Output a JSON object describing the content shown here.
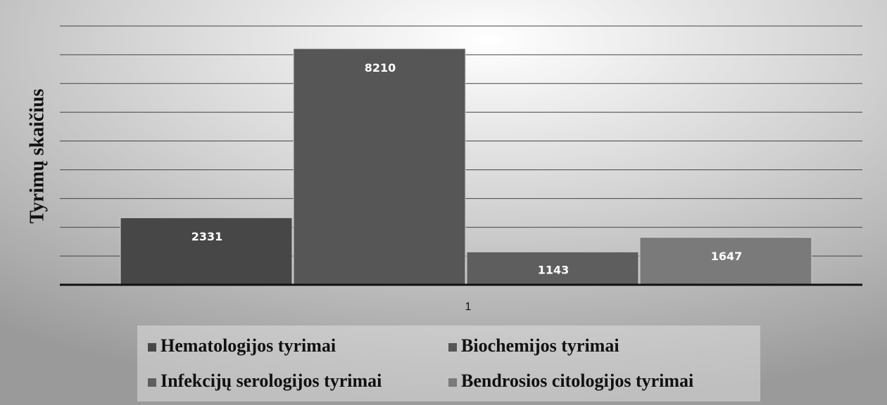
{
  "chart_data": {
    "type": "bar",
    "y_label": "Tyrimų skaičius",
    "categories": [
      "1"
    ],
    "series": [
      {
        "name": "Hematologijos tyrimai",
        "color": "#474747",
        "values": [
          2331
        ]
      },
      {
        "name": "Biochemijos tyrimai",
        "color": "#565656",
        "values": [
          8210
        ]
      },
      {
        "name": "Infekcijų serologijos tyrimai",
        "color": "#5e5e5e",
        "values": [
          1143
        ]
      },
      {
        "name": "Bendrosios citologijos tyrimai",
        "color": "#7a7a7a",
        "values": [
          1647
        ]
      }
    ],
    "ylim": [
      0,
      9000
    ],
    "yticks": [
      0,
      1000,
      2000,
      3000,
      4000,
      5000,
      6000,
      7000,
      8000,
      9000
    ],
    "grid": true,
    "legend": "bottom"
  }
}
